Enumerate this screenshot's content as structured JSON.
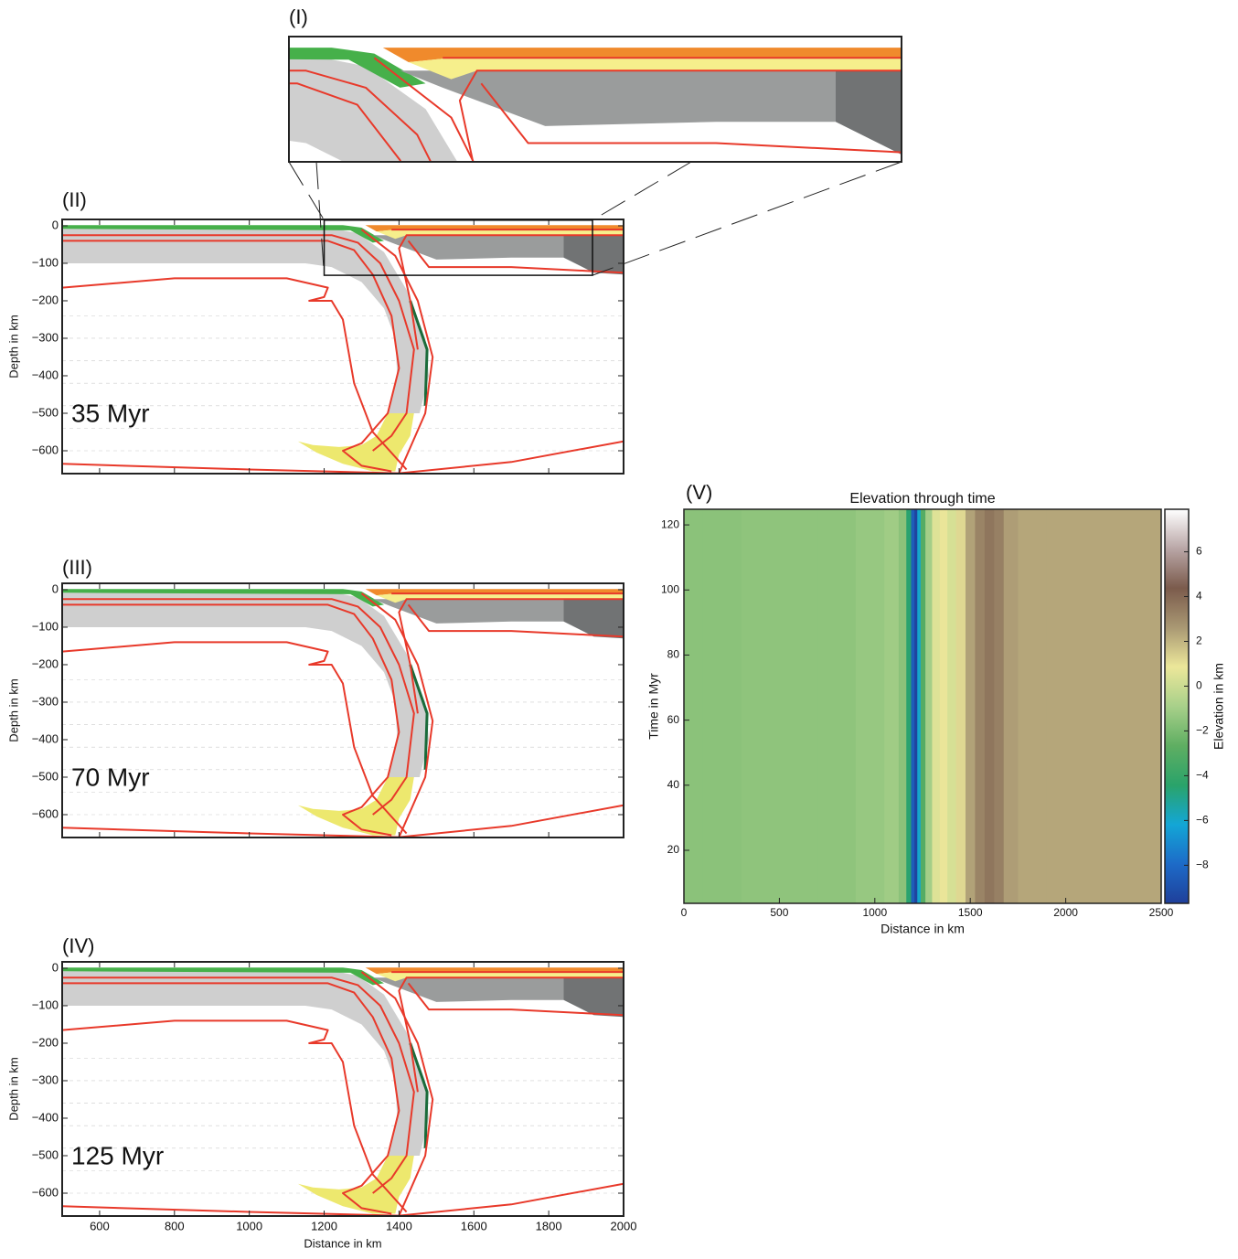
{
  "chart_data": [
    {
      "type": "section",
      "label": "(I)"
    },
    {
      "type": "section",
      "label": "(II)",
      "annotation": "35 Myr",
      "ylabel": "Depth in km",
      "xlim": [
        500,
        2000
      ],
      "ylim": [
        -661,
        17
      ],
      "yticks": [
        0,
        {
          "value": -100,
          "label": "−100"
        },
        {
          "value": -200,
          "label": "−200"
        },
        {
          "value": -300,
          "label": "−300"
        },
        {
          "value": -400,
          "label": "−400"
        },
        {
          "value": -500,
          "label": "−500"
        },
        {
          "value": -600,
          "label": "−600"
        }
      ]
    },
    {
      "type": "section",
      "label": "(III)",
      "annotation": "70 Myr",
      "ylabel": "Depth in km",
      "xlim": [
        500,
        2000
      ],
      "ylim": [
        -661,
        17
      ],
      "yticks": [
        0,
        {
          "value": -100,
          "label": "−100"
        },
        {
          "value": -200,
          "label": "−200"
        },
        {
          "value": -300,
          "label": "−300"
        },
        {
          "value": -400,
          "label": "−400"
        },
        {
          "value": -500,
          "label": "−500"
        },
        {
          "value": -600,
          "label": "−600"
        }
      ]
    },
    {
      "type": "section",
      "label": "(IV)",
      "annotation": "125 Myr",
      "ylabel": "Depth in km",
      "xlabel": "Distance in km",
      "xlim": [
        500,
        2000
      ],
      "ylim": [
        -661,
        17
      ],
      "xticks": [
        600,
        800,
        1000,
        1200,
        1400,
        1600,
        1800,
        2000
      ],
      "yticks": [
        0,
        {
          "value": -100,
          "label": "−100"
        },
        {
          "value": -200,
          "label": "−200"
        },
        {
          "value": -300,
          "label": "−300"
        },
        {
          "value": -400,
          "label": "−400"
        },
        {
          "value": -500,
          "label": "−500"
        },
        {
          "value": -600,
          "label": "−600"
        }
      ]
    },
    {
      "type": "heatmap",
      "label": "(V)",
      "title": "Elevation through time",
      "xlabel": "Distance in km",
      "ylabel": "Time in Myr",
      "colorbar_label": "Elevation in km",
      "xlim": [
        0,
        2500
      ],
      "xticks": [
        0,
        500,
        1000,
        1500,
        2000,
        2500
      ],
      "ylim": [
        3.7,
        124.8
      ],
      "yticks": [
        20,
        40,
        60,
        80,
        100,
        120
      ],
      "clim": [
        -9.7,
        7.9
      ],
      "cticks": [
        {
          "value": -8,
          "label": "−8"
        },
        {
          "value": -6,
          "label": "−6"
        },
        {
          "value": -4,
          "label": "−4"
        },
        {
          "value": -2,
          "label": "−2"
        },
        0,
        2,
        4,
        6
      ],
      "colormap": [
        "#1f3f9a",
        "#1d6bc8",
        "#13a6d6",
        "#2aa36a",
        "#5fae62",
        "#a8d08a",
        "#ece79a",
        "#a99873",
        "#7b5b4c",
        "#b9a6a6",
        "#ffffff"
      ],
      "x": [
        0,
        200,
        400,
        600,
        800,
        1000,
        1100,
        1150,
        1180,
        1200,
        1215,
        1230,
        1250,
        1280,
        1320,
        1360,
        1400,
        1450,
        1500,
        1550,
        1600,
        1650,
        1700,
        1800,
        2000,
        2250,
        2500
      ],
      "values": [
        -1.6,
        -1.6,
        -1.5,
        -1.5,
        -1.5,
        -1.3,
        -1.1,
        -1.6,
        -4.5,
        -8.5,
        -9.5,
        -6,
        -3,
        -1,
        0.5,
        0.9,
        0.3,
        1.2,
        2.4,
        3.2,
        3.6,
        3.3,
        2.5,
        2.3,
        2.3,
        2.3,
        2.3
      ]
    }
  ]
}
